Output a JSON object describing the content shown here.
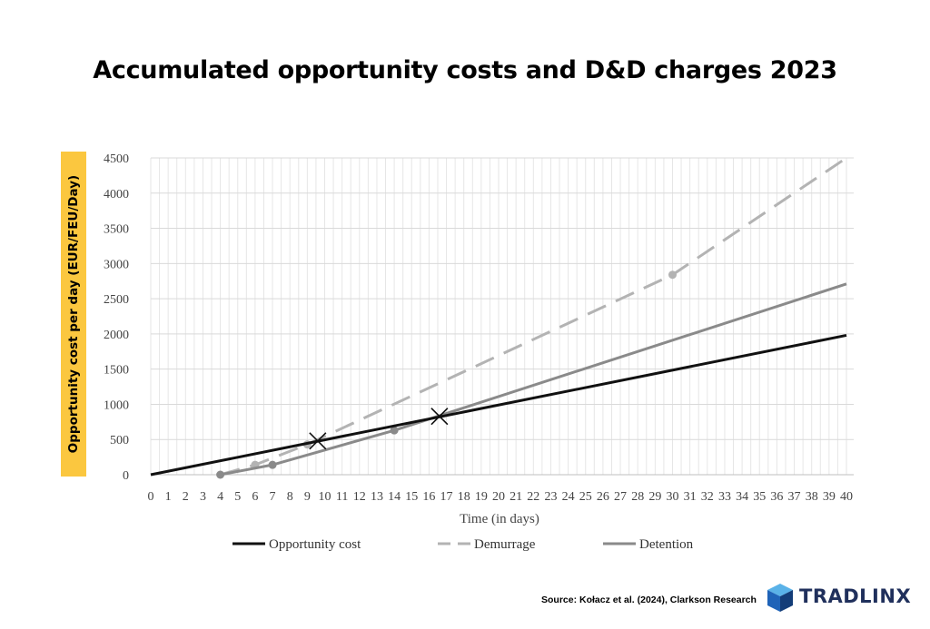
{
  "chart_data": {
    "type": "line",
    "title": "Accumulated opportunity costs and D&D charges 2023",
    "xlabel": "Time (in days)",
    "ylabel": "Opportunity cost per day (EUR/FEU/Day)",
    "xlim": [
      0,
      40
    ],
    "ylim": [
      0,
      4500
    ],
    "x_ticks": [
      0,
      1,
      2,
      3,
      4,
      5,
      6,
      7,
      8,
      9,
      10,
      11,
      12,
      13,
      14,
      15,
      16,
      17,
      18,
      19,
      20,
      21,
      22,
      23,
      24,
      25,
      26,
      27,
      28,
      29,
      30,
      31,
      32,
      33,
      34,
      35,
      36,
      37,
      38,
      39,
      40
    ],
    "y_ticks": [
      0,
      500,
      1000,
      1500,
      2000,
      2500,
      3000,
      3500,
      4000,
      4500
    ],
    "grid": true,
    "legend_position": "bottom",
    "series": [
      {
        "name": "Opportunity cost",
        "color": "#111111",
        "style": "solid",
        "points": [
          [
            0,
            0
          ],
          [
            40,
            1980
          ]
        ]
      },
      {
        "name": "Demurrage",
        "color": "#b3b3b3",
        "style": "dashed",
        "points": [
          [
            4,
            0
          ],
          [
            6,
            140
          ],
          [
            9,
            430
          ],
          [
            30,
            2840
          ],
          [
            40,
            4500
          ]
        ],
        "markers": [
          [
            6,
            140
          ],
          [
            9,
            430
          ],
          [
            30,
            2840
          ]
        ]
      },
      {
        "name": "Detention",
        "color": "#8a8a8a",
        "style": "solid",
        "points": [
          [
            4,
            0
          ],
          [
            7,
            140
          ],
          [
            14,
            630
          ],
          [
            40,
            2710
          ]
        ],
        "markers": [
          [
            4,
            0
          ],
          [
            7,
            140
          ],
          [
            14,
            630
          ]
        ]
      }
    ],
    "annotations": [
      {
        "type": "cross",
        "x": 9.6,
        "y": 480
      },
      {
        "type": "cross",
        "x": 16.6,
        "y": 830
      }
    ]
  },
  "footer": {
    "source": "Source: Kołacz et al. (2024), Clarkson Research",
    "logo_text": "TRADLINX"
  }
}
